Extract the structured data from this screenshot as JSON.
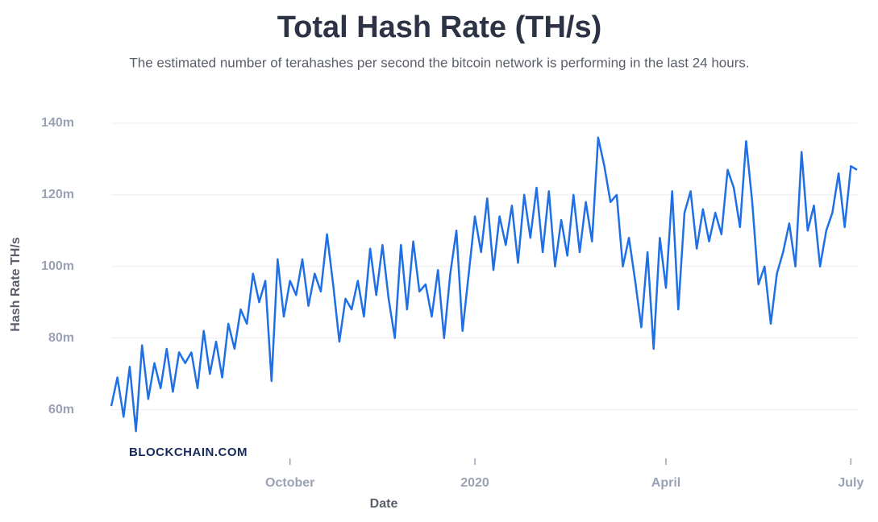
{
  "chart_data": {
    "type": "line",
    "title": "Total Hash Rate (TH/s)",
    "subtitle": "The estimated number of terahashes per second the bitcoin network is performing in the last 24 hours.",
    "y_label": "Hash Rate TH/s",
    "x_label": "Date",
    "watermark": "BLOCKCHAIN.COM",
    "color": "#1f6fe5",
    "grid": true,
    "ylim": [
      50,
      140
    ],
    "yticks": [
      {
        "value": 60,
        "label": "60m"
      },
      {
        "value": 80,
        "label": "80m"
      },
      {
        "value": 100,
        "label": "100m"
      },
      {
        "value": 120,
        "label": "120m"
      },
      {
        "value": 140,
        "label": "140m"
      }
    ],
    "categories": [
      null,
      null,
      null,
      null,
      null,
      null,
      null,
      null,
      null,
      null,
      null,
      null,
      null,
      null,
      null,
      null,
      null,
      null,
      null,
      null,
      null,
      null,
      null,
      null,
      null,
      null,
      null,
      null,
      null,
      "October",
      null,
      null,
      null,
      null,
      null,
      null,
      null,
      null,
      null,
      null,
      null,
      null,
      null,
      null,
      null,
      null,
      null,
      null,
      null,
      null,
      null,
      null,
      null,
      null,
      null,
      null,
      null,
      null,
      null,
      "2020",
      null,
      null,
      null,
      null,
      null,
      null,
      null,
      null,
      null,
      null,
      null,
      null,
      null,
      null,
      null,
      null,
      null,
      null,
      null,
      null,
      null,
      null,
      null,
      null,
      null,
      null,
      null,
      null,
      null,
      null,
      "April",
      null,
      null,
      null,
      null,
      null,
      null,
      null,
      null,
      null,
      null,
      null,
      null,
      null,
      null,
      null,
      null,
      null,
      null,
      null,
      null,
      null,
      null,
      null,
      null,
      null,
      null,
      null,
      null,
      null,
      "July",
      null
    ],
    "values": [
      61,
      69,
      58,
      72,
      54,
      78,
      63,
      73,
      66,
      77,
      65,
      76,
      73,
      76,
      66,
      82,
      70,
      79,
      69,
      84,
      77,
      88,
      84,
      98,
      90,
      96,
      68,
      102,
      86,
      96,
      92,
      102,
      89,
      98,
      93,
      109,
      95,
      79,
      91,
      88,
      96,
      86,
      105,
      92,
      106,
      91,
      80,
      106,
      88,
      107,
      93,
      95,
      86,
      99,
      80,
      98,
      110,
      82,
      98,
      114,
      104,
      119,
      99,
      114,
      106,
      117,
      101,
      120,
      108,
      122,
      104,
      121,
      100,
      113,
      103,
      120,
      104,
      118,
      107,
      136,
      128,
      118,
      120,
      100,
      108,
      96,
      83,
      104,
      77,
      108,
      94,
      121,
      88,
      115,
      121,
      105,
      116,
      107,
      115,
      109,
      127,
      122,
      111,
      135,
      118,
      95,
      100,
      84,
      98,
      104,
      112,
      100,
      132,
      110,
      117,
      100,
      110,
      115,
      126,
      111,
      128,
      127
    ]
  }
}
